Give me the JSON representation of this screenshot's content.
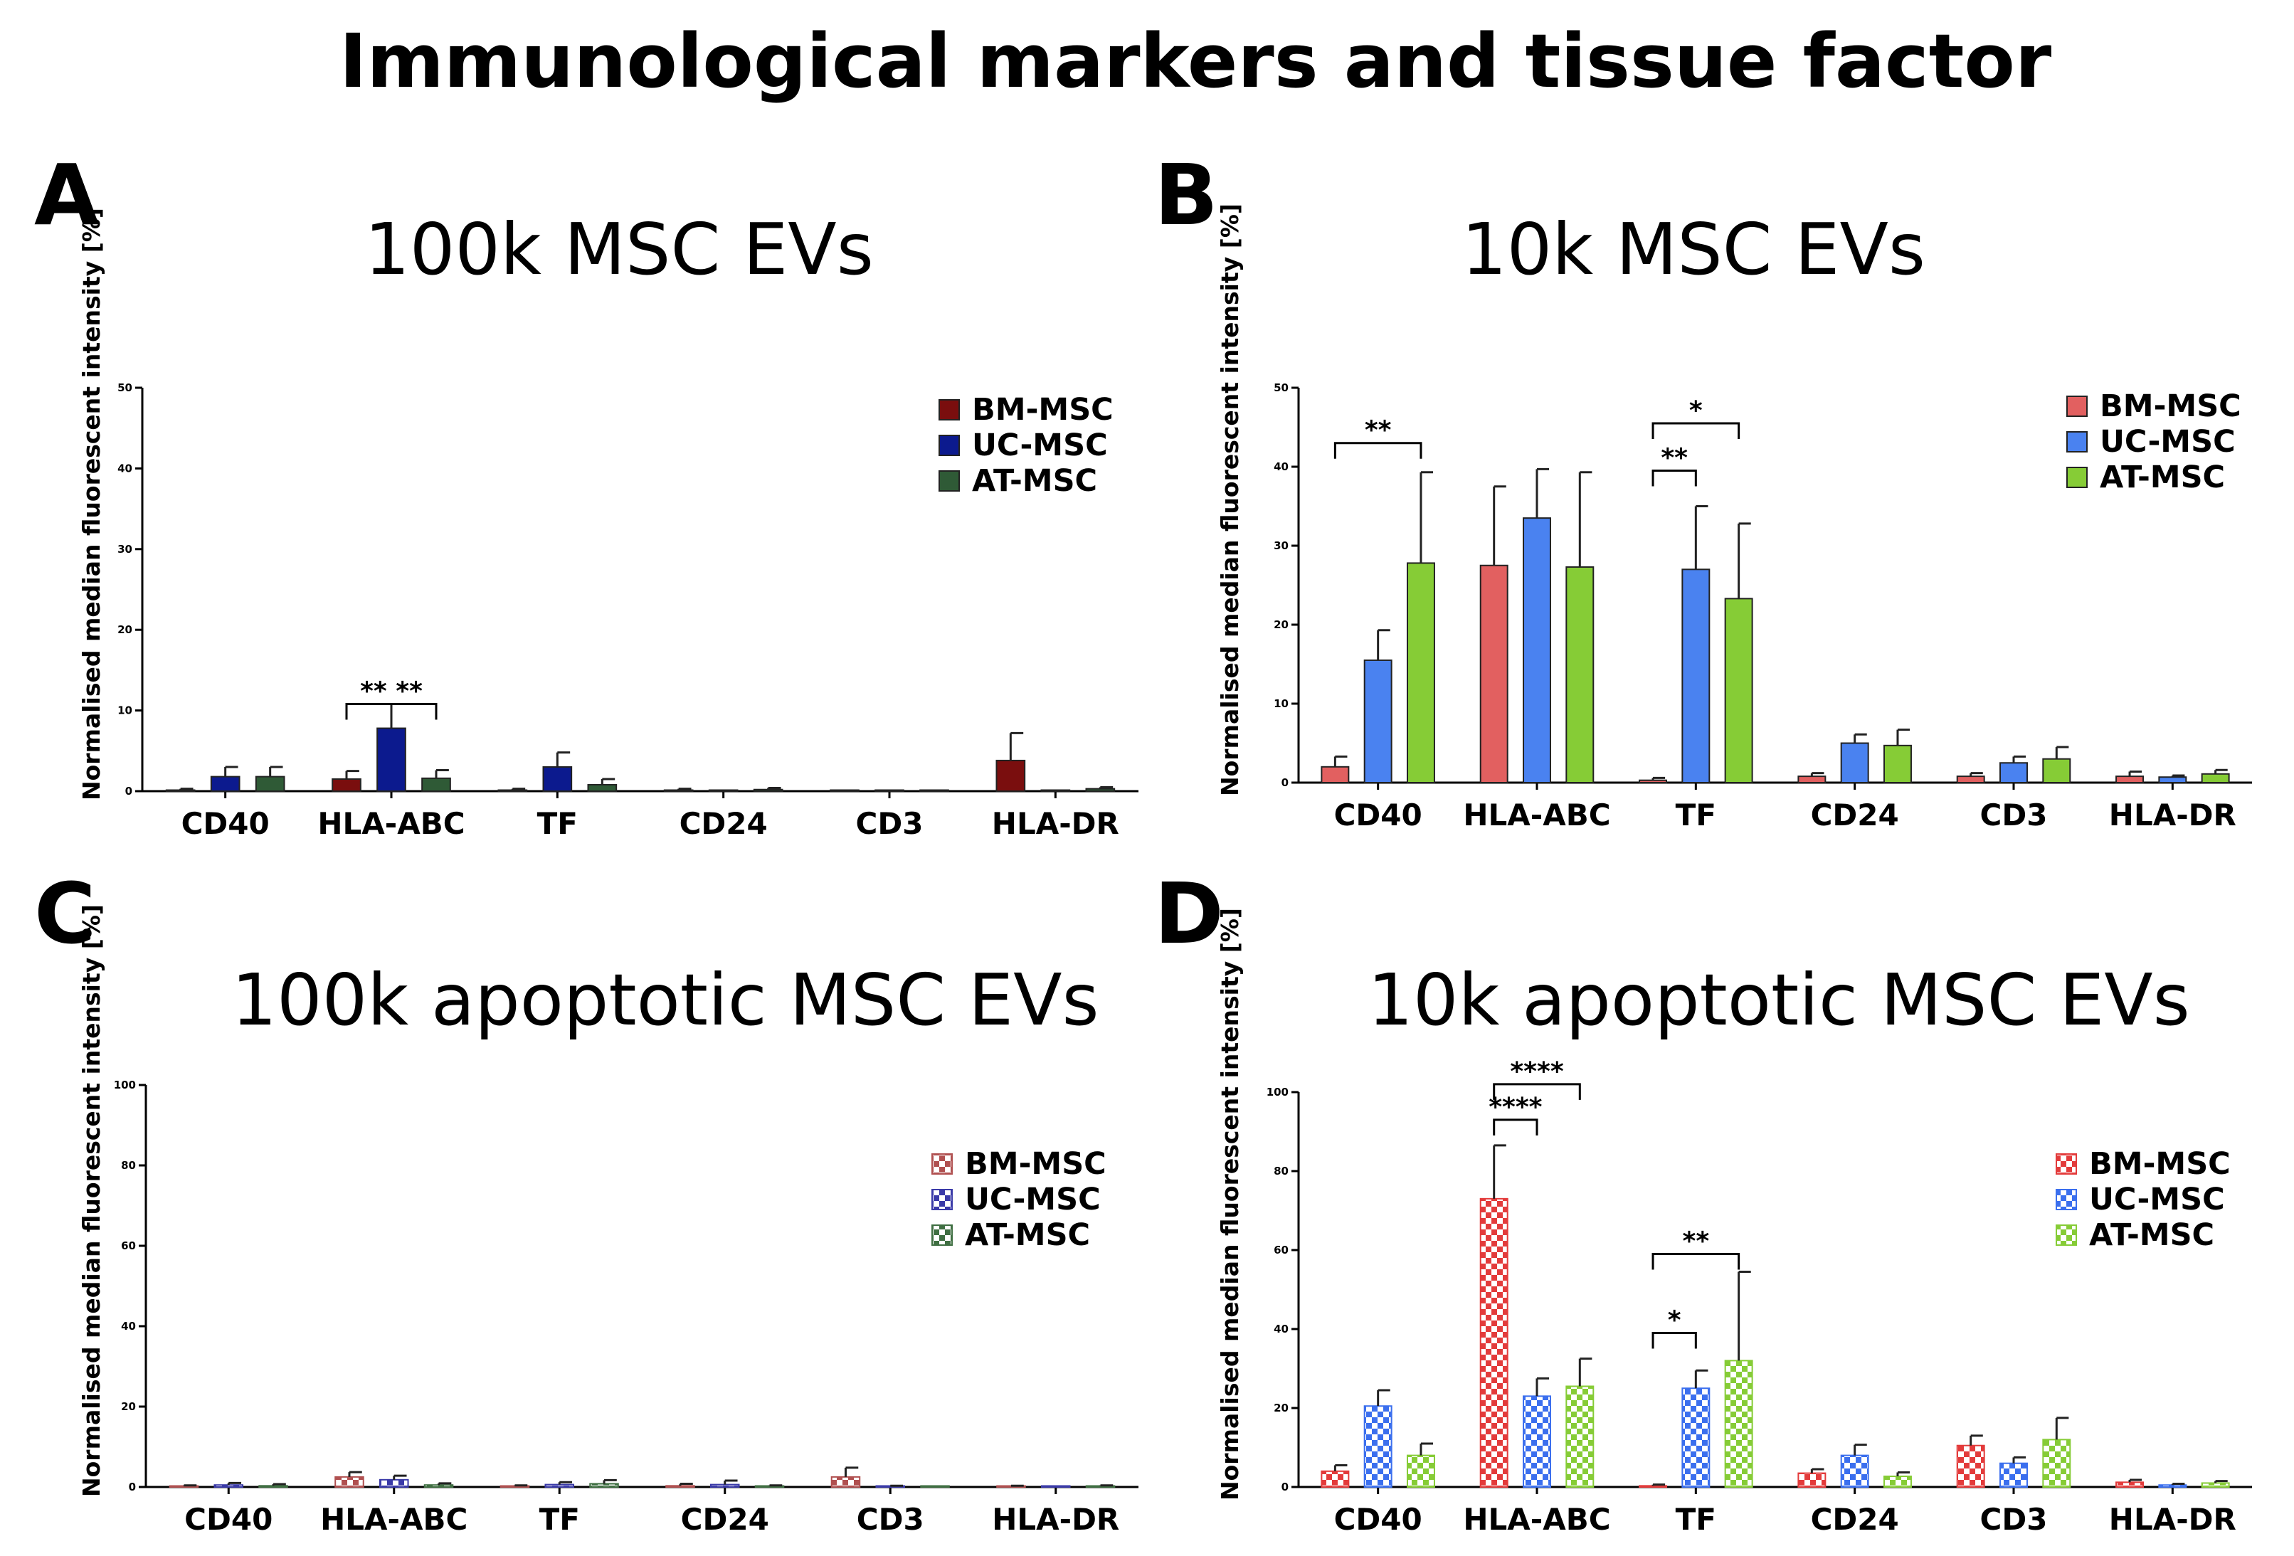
{
  "figure_title": "Immunological markers and tissue factor",
  "colors": {
    "solid_A": [
      "#7a0e0e",
      "#0c1a8e",
      "#2f5a36"
    ],
    "solid_B": [
      "#e26060",
      "#4a82f0",
      "#86cc36"
    ],
    "pattern_C": [
      "#b05050",
      "#3a3aa8",
      "#3f6f42"
    ],
    "pattern_D": [
      "#e33b3b",
      "#3b6fee",
      "#86cc36"
    ]
  },
  "chart_data": [
    {
      "panel": "A",
      "type": "bar",
      "style": "solid",
      "title": "100k MSC EVs",
      "xlabel": "",
      "ylabel": "Normalised median fluorescent intensity [%]",
      "ylim": [
        0,
        50
      ],
      "yticks": [
        "0",
        "10",
        "20",
        "30",
        "40",
        "50"
      ],
      "categories": [
        "CD40",
        "HLA-ABC",
        "TF",
        "CD24",
        "CD3",
        "HLA-DR"
      ],
      "legend": [
        "BM-MSC",
        "UC-MSC",
        "AT-MSC"
      ],
      "series": [
        {
          "name": "BM-MSC",
          "values": [
            0.1,
            1.5,
            0.1,
            0.1,
            0,
            3.8
          ],
          "errors": [
            0.2,
            1.0,
            0.2,
            0.2,
            0,
            3.4
          ]
        },
        {
          "name": "UC-MSC",
          "values": [
            1.8,
            7.8,
            3.0,
            0,
            0,
            0
          ],
          "errors": [
            1.2,
            3.0,
            1.8,
            0,
            0,
            0
          ]
        },
        {
          "name": "AT-MSC",
          "values": [
            1.8,
            1.6,
            0.8,
            0.2,
            0,
            0.3
          ],
          "errors": [
            1.2,
            1.0,
            0.7,
            0.2,
            0,
            0.2
          ]
        }
      ],
      "significance": [
        {
          "category": 1,
          "from": 0,
          "to": 2,
          "label": "** **",
          "at": 10.8
        }
      ]
    },
    {
      "panel": "B",
      "type": "bar",
      "style": "solid",
      "title": "10k MSC EVs",
      "xlabel": "",
      "ylabel": "Normalised median fluorescent intensity [%]",
      "ylim": [
        0,
        50
      ],
      "yticks": [
        "0",
        "10",
        "20",
        "30",
        "40",
        "50"
      ],
      "categories": [
        "CD40",
        "HLA-ABC",
        "TF",
        "CD24",
        "CD3",
        "HLA-DR"
      ],
      "legend": [
        "BM-MSC",
        "UC-MSC",
        "AT-MSC"
      ],
      "series": [
        {
          "name": "BM-MSC",
          "values": [
            2.0,
            27.5,
            0.3,
            0.8,
            0.8,
            0.8
          ],
          "errors": [
            1.3,
            10.0,
            0.3,
            0.4,
            0.4,
            0.6
          ]
        },
        {
          "name": "UC-MSC",
          "values": [
            15.5,
            33.5,
            27.0,
            5.0,
            2.5,
            0.7
          ],
          "errors": [
            3.8,
            6.2,
            8.0,
            1.1,
            0.8,
            0.2
          ]
        },
        {
          "name": "AT-MSC",
          "values": [
            27.8,
            27.3,
            23.3,
            4.7,
            3.0,
            1.1
          ],
          "errors": [
            11.5,
            12.0,
            9.5,
            2.0,
            1.5,
            0.5
          ]
        }
      ],
      "significance": [
        {
          "category": 0,
          "from": 0,
          "to": 2,
          "label": "**",
          "at": 43.0
        },
        {
          "category": 2,
          "from": 0,
          "to": 1,
          "label": "**",
          "at": 39.5
        },
        {
          "category": 2,
          "from": 0,
          "to": 2,
          "label": "*",
          "at": 45.5
        }
      ]
    },
    {
      "panel": "C",
      "type": "bar",
      "style": "checker",
      "title": "100k apoptotic MSC EVs",
      "xlabel": "",
      "ylabel": "Normalised median fluorescent intensity [%]",
      "ylim": [
        0,
        100
      ],
      "yticks": [
        "0",
        "20",
        "40",
        "60",
        "80",
        "100"
      ],
      "categories": [
        "CD40",
        "HLA-ABC",
        "TF",
        "CD24",
        "CD3",
        "HLA-DR"
      ],
      "legend": [
        "BM-MSC",
        "UC-MSC",
        "AT-MSC"
      ],
      "series": [
        {
          "name": "BM-MSC",
          "values": [
            0.1,
            2.5,
            0.1,
            0.3,
            2.5,
            0.1
          ],
          "errors": [
            0.3,
            1.2,
            0.3,
            0.5,
            2.3,
            0.2
          ]
        },
        {
          "name": "UC-MSC",
          "values": [
            0.5,
            1.8,
            0.6,
            0.6,
            0.1,
            0
          ],
          "errors": [
            0.5,
            1.0,
            0.6,
            1.0,
            0.2,
            0
          ]
        },
        {
          "name": "AT-MSC",
          "values": [
            0.3,
            0.5,
            0.8,
            0.2,
            0,
            0.2
          ],
          "errors": [
            0.4,
            0.4,
            0.9,
            0.2,
            0,
            0.2
          ]
        }
      ],
      "significance": []
    },
    {
      "panel": "D",
      "type": "bar",
      "style": "checker",
      "title": "10k apoptotic MSC EVs",
      "xlabel": "",
      "ylabel": "Normalised median fluorescent intensity [%]",
      "ylim": [
        0,
        100
      ],
      "yticks": [
        "0",
        "20",
        "40",
        "60",
        "80",
        "100"
      ],
      "categories": [
        "CD40",
        "HLA-ABC",
        "TF",
        "CD24",
        "CD3",
        "HLA-DR"
      ],
      "legend": [
        "BM-MSC",
        "UC-MSC",
        "AT-MSC"
      ],
      "series": [
        {
          "name": "BM-MSC",
          "values": [
            4.0,
            73.0,
            0.3,
            3.5,
            10.5,
            1.2
          ],
          "errors": [
            1.5,
            13.5,
            0.3,
            1.0,
            2.5,
            0.6
          ]
        },
        {
          "name": "UC-MSC",
          "values": [
            20.5,
            23.0,
            25.0,
            8.0,
            6.0,
            0.5
          ],
          "errors": [
            4.0,
            4.5,
            4.5,
            2.7,
            1.5,
            0.3
          ]
        },
        {
          "name": "AT-MSC",
          "values": [
            8.0,
            25.5,
            32.0,
            2.7,
            12.0,
            1.0
          ],
          "errors": [
            3.0,
            7.0,
            22.5,
            1.0,
            5.5,
            0.5
          ]
        }
      ],
      "significance": [
        {
          "category": 1,
          "from": 0,
          "to": 1,
          "label": "****",
          "at": 93.0
        },
        {
          "category": 1,
          "from": 0,
          "to": 2,
          "label": "****",
          "at": 102.0
        },
        {
          "category": 2,
          "from": 0,
          "to": 1,
          "label": "*",
          "at": 39.0
        },
        {
          "category": 2,
          "from": 0,
          "to": 2,
          "label": "**",
          "at": 59.0
        }
      ]
    }
  ]
}
